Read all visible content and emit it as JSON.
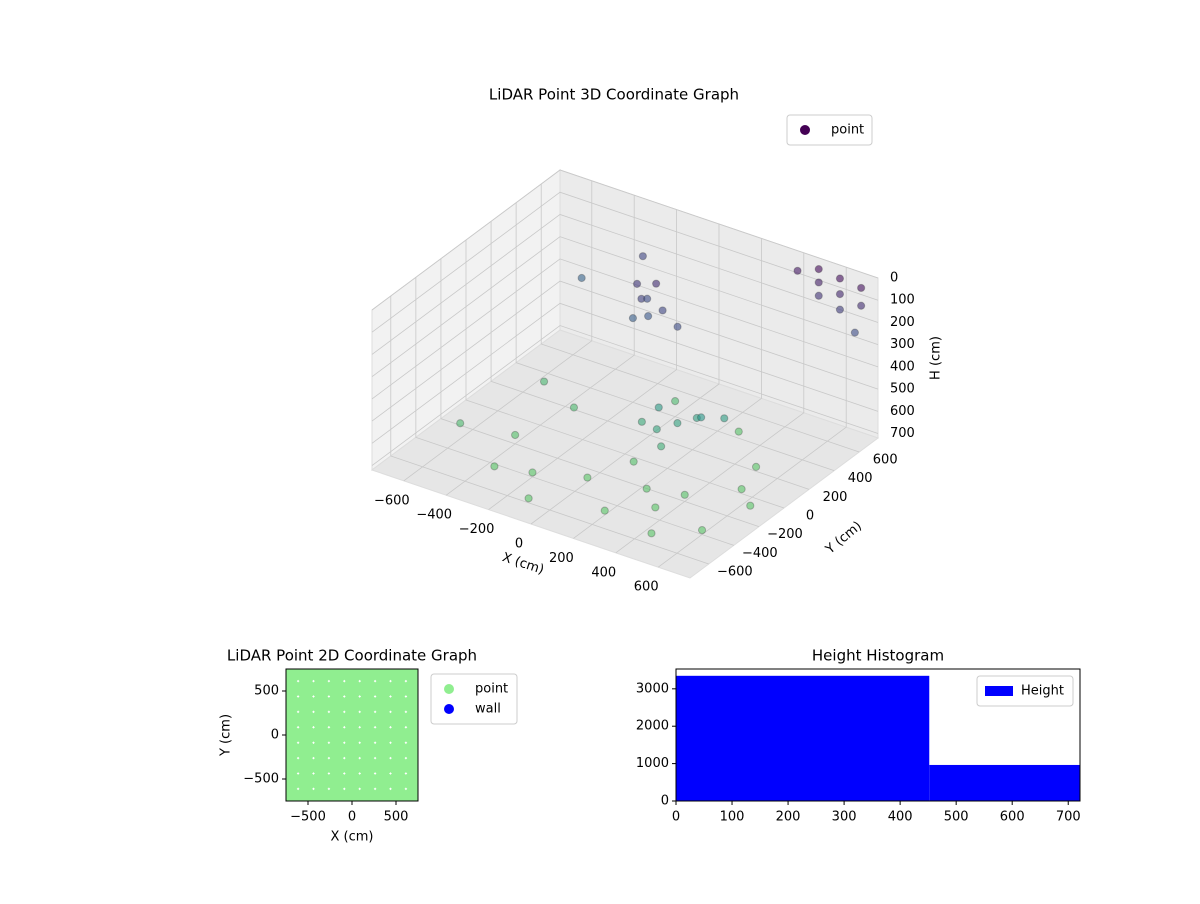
{
  "chart_data": [
    {
      "type": "scatter3d",
      "title": "LiDAR Point 3D Coordinate Graph",
      "xlabel": "X (cm)",
      "ylabel": "Y (cm)",
      "zlabel": "H (cm)",
      "xlim": [
        -750,
        750
      ],
      "ylim": [
        -750,
        750
      ],
      "zlim": [
        0,
        720
      ],
      "z_inverted": true,
      "colormap": "viridis",
      "legend": "upper right",
      "xticks": [
        {
          "value": -600,
          "label": "−600"
        },
        {
          "value": -400,
          "label": "−400"
        },
        {
          "value": -200,
          "label": "−200"
        },
        0,
        200,
        400,
        600
      ],
      "yticks": [
        {
          "value": -600,
          "label": "−600"
        },
        {
          "value": -400,
          "label": "−400"
        },
        {
          "value": -200,
          "label": "−200"
        },
        0,
        200,
        400,
        600
      ],
      "zticks": [
        0,
        100,
        200,
        300,
        400,
        500,
        600,
        700
      ],
      "series": [
        {
          "name": "point",
          "color": "#440154",
          "x": [
            -150,
            -100,
            -120,
            -80,
            -60,
            -140,
            0,
            100,
            100,
            200,
            150,
            250,
            300,
            50,
            200,
            350,
            500,
            500,
            500,
            600,
            600,
            600,
            700,
            700,
            700,
            400,
            -300,
            -500,
            -600,
            -400,
            -200,
            0,
            200,
            400,
            600,
            500,
            300,
            -300,
            -500,
            100,
            350,
            650,
            -100,
            450,
            250,
            550,
            -350,
            0
          ],
          "y": [
            350,
            300,
            380,
            320,
            350,
            300,
            300,
            250,
            100,
            80,
            0,
            150,
            100,
            50,
            -50,
            200,
            700,
            700,
            700,
            700,
            700,
            700,
            700,
            700,
            650,
            700,
            650,
            500,
            -300,
            -200,
            -400,
            -300,
            -500,
            -200,
            -400,
            200,
            400,
            100,
            200,
            -100,
            -350,
            -100,
            -600,
            -550,
            -250,
            0,
            -450,
            400
          ],
          "h": [
            150,
            180,
            220,
            260,
            120,
            280,
            200,
            220,
            520,
            550,
            560,
            540,
            500,
            580,
            600,
            530,
            20,
            80,
            140,
            30,
            100,
            170,
            40,
            120,
            220,
            60,
            200,
            300,
            650,
            680,
            700,
            700,
            700,
            690,
            700,
            700,
            690,
            650,
            640,
            680,
            700,
            700,
            700,
            700,
            690,
            700,
            700,
            650
          ]
        }
      ]
    },
    {
      "type": "scatter",
      "title": "LiDAR Point 2D Coordinate Graph",
      "xlabel": "X (cm)",
      "ylabel": "Y (cm)",
      "xlim": [
        -750,
        750
      ],
      "ylim": [
        -750,
        750
      ],
      "legend": "outside right",
      "xticks": [
        {
          "value": -500,
          "label": "−500"
        },
        0,
        500
      ],
      "yticks": [
        {
          "value": -500,
          "label": "−500"
        },
        0,
        500
      ],
      "series": [
        {
          "name": "point",
          "color": "#90ee90",
          "x": [
            -700,
            -525,
            -350,
            -175,
            0,
            175,
            350,
            525,
            700,
            -700,
            -525,
            -350,
            -175,
            0,
            175,
            350,
            525,
            700,
            -700,
            -525,
            -350,
            -175,
            0,
            175,
            350,
            525,
            700,
            -700,
            -525,
            -350,
            -175,
            0,
            175,
            350,
            525,
            700,
            -700,
            -525,
            -350,
            -175,
            0,
            175,
            350,
            525,
            700,
            -700,
            -525,
            -350,
            -175,
            0,
            175,
            350,
            525,
            700,
            -700,
            -525,
            -350,
            -175,
            0,
            175,
            350,
            525,
            700,
            -700,
            -525,
            -350,
            -175,
            0,
            175,
            350,
            525,
            700,
            -700,
            -525,
            -350,
            -175,
            0,
            175,
            350,
            525,
            700
          ],
          "y": [
            -700,
            -700,
            -700,
            -700,
            -700,
            -700,
            -700,
            -700,
            -700,
            -525,
            -525,
            -525,
            -525,
            -525,
            -525,
            -525,
            -525,
            -525,
            -350,
            -350,
            -350,
            -350,
            -350,
            -350,
            -350,
            -350,
            -350,
            -175,
            -175,
            -175,
            -175,
            -175,
            -175,
            -175,
            -175,
            -175,
            0,
            0,
            0,
            0,
            0,
            0,
            0,
            0,
            0,
            175,
            175,
            175,
            175,
            175,
            175,
            175,
            175,
            175,
            350,
            350,
            350,
            350,
            350,
            350,
            350,
            350,
            350,
            525,
            525,
            525,
            525,
            525,
            525,
            525,
            525,
            525,
            700,
            700,
            700,
            700,
            700,
            700,
            700,
            700,
            700
          ]
        },
        {
          "name": "wall",
          "color": "#0000ff",
          "x": [],
          "y": []
        }
      ]
    },
    {
      "type": "histogram",
      "title": "Height Histogram",
      "bins": [
        0,
        452,
        721
      ],
      "xlim": [
        0,
        721
      ],
      "ylim": [
        0,
        3530
      ],
      "xticks": [
        0,
        100,
        200,
        300,
        400,
        500,
        600,
        700
      ],
      "yticks": [
        0,
        1000,
        2000,
        3000
      ],
      "legend": "upper right",
      "series": [
        {
          "name": "Height",
          "color": "#0000ff",
          "values": [
            3348,
            964
          ]
        }
      ]
    }
  ]
}
